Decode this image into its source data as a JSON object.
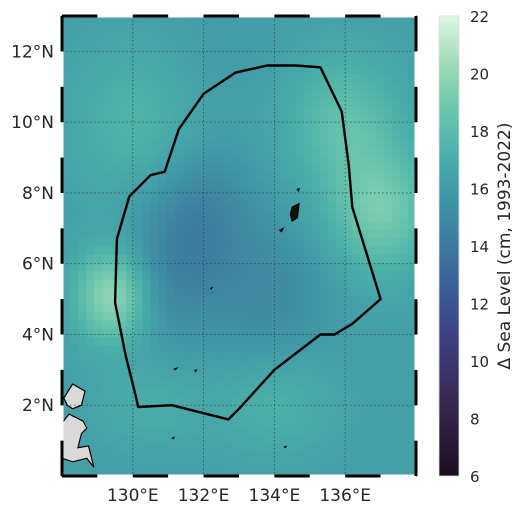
{
  "map": {
    "lon_range": [
      128,
      138
    ],
    "lat_range": [
      0,
      13
    ],
    "x_ticks": [
      {
        "value": 130,
        "label": "130°E"
      },
      {
        "value": 132,
        "label": "132°E"
      },
      {
        "value": 134,
        "label": "134°E"
      },
      {
        "value": 136,
        "label": "136°E"
      }
    ],
    "y_ticks": [
      {
        "value": 2,
        "label": "2°N"
      },
      {
        "value": 4,
        "label": "4°N"
      },
      {
        "value": 6,
        "label": "6°N"
      },
      {
        "value": 8,
        "label": "8°N"
      },
      {
        "value": 10,
        "label": "10°N"
      },
      {
        "value": 12,
        "label": "12°N"
      }
    ],
    "gridlines": "dotted",
    "land_color": "#d9d9d9",
    "boundary_color": "#000000"
  },
  "colorbar": {
    "label": "Δ Sea Level (cm, 1993-2022)",
    "min": 6,
    "max": 22,
    "ticks": [
      {
        "value": 6,
        "label": "6"
      },
      {
        "value": 8,
        "label": "8"
      },
      {
        "value": 10,
        "label": "10"
      },
      {
        "value": 12,
        "label": "12"
      },
      {
        "value": 14,
        "label": "14"
      },
      {
        "value": 16,
        "label": "16"
      },
      {
        "value": 18,
        "label": "18"
      },
      {
        "value": 20,
        "label": "20"
      },
      {
        "value": 22,
        "label": "22"
      }
    ],
    "colormap": [
      "#1c0f1d",
      "#2d1e3e",
      "#3b2f5e",
      "#3e3f83",
      "#3b5b96",
      "#3c7a9f",
      "#3f95a6",
      "#4cb0a9",
      "#6dc7ad",
      "#a1dbb8",
      "#def5e5"
    ]
  },
  "chart_data": {
    "type": "heatmap",
    "description_units": "Δ Sea Level (cm, 1993-2022)",
    "extent": {
      "lon": [
        128,
        138
      ],
      "lat": [
        0,
        13
      ]
    },
    "value_range": [
      6,
      22
    ],
    "field_features": [
      {
        "lon": 129.4,
        "lat": 5.1,
        "value": 20.0,
        "spread_lon": 0.7,
        "spread_lat": 0.9
      },
      {
        "lon": 131.2,
        "lat": 5.8,
        "value": 14.8,
        "spread_lon": 1.0,
        "spread_lat": 1.3
      },
      {
        "lon": 132.0,
        "lat": 7.5,
        "value": 14.8,
        "spread_lon": 1.0,
        "spread_lat": 1.2
      },
      {
        "lon": 133.8,
        "lat": 5.2,
        "value": 15.0,
        "spread_lon": 1.2,
        "spread_lat": 1.3
      },
      {
        "lon": 137.0,
        "lat": 7.5,
        "value": 19.0,
        "spread_lon": 1.0,
        "spread_lat": 1.2
      },
      {
        "lon": 136.0,
        "lat": 10.0,
        "value": 18.2,
        "spread_lon": 1.1,
        "spread_lat": 1.3
      },
      {
        "lon": 134.0,
        "lat": 2.0,
        "value": 17.2,
        "spread_lon": 1.2,
        "spread_lat": 1.0
      },
      {
        "lon": 130.5,
        "lat": 2.0,
        "value": 17.0,
        "spread_lon": 1.1,
        "spread_lat": 0.8
      },
      {
        "lon": 130.0,
        "lat": 10.0,
        "value": 17.4,
        "spread_lon": 1.2,
        "spread_lat": 1.5
      },
      {
        "lon": 132.5,
        "lat": 12.0,
        "value": 16.0,
        "spread_lon": 1.2,
        "spread_lat": 1.0
      }
    ],
    "background_value": 16.2,
    "boundary_polygon": [
      [
        134.6,
        11.6
      ],
      [
        135.3,
        11.55
      ],
      [
        135.9,
        10.3
      ],
      [
        136.1,
        8.8
      ],
      [
        136.2,
        7.6
      ],
      [
        137.0,
        5.0
      ],
      [
        136.2,
        4.3
      ],
      [
        135.7,
        4.0
      ],
      [
        135.3,
        4.0
      ],
      [
        134.0,
        3.0
      ],
      [
        133.0,
        1.9
      ],
      [
        132.7,
        1.6
      ],
      [
        131.1,
        2.0
      ],
      [
        130.15,
        1.95
      ],
      [
        130.1,
        2.2
      ],
      [
        129.8,
        3.4
      ],
      [
        129.5,
        4.9
      ],
      [
        129.55,
        6.7
      ],
      [
        129.9,
        7.9
      ],
      [
        130.5,
        8.5
      ],
      [
        130.9,
        8.6
      ],
      [
        131.3,
        9.8
      ],
      [
        132.0,
        10.8
      ],
      [
        132.9,
        11.4
      ],
      [
        133.8,
        11.6
      ],
      [
        134.6,
        11.6
      ]
    ],
    "islands": [
      {
        "name": "",
        "points": [
          [
            134.5,
            7.6
          ],
          [
            134.7,
            7.7
          ],
          [
            134.65,
            7.3
          ],
          [
            134.5,
            7.2
          ],
          [
            134.45,
            7.4
          ]
        ]
      },
      {
        "name": "",
        "points": [
          [
            134.64,
            8.1
          ],
          [
            134.7,
            8.12
          ],
          [
            134.68,
            8.05
          ]
        ]
      },
      {
        "name": "",
        "points": [
          [
            134.15,
            6.95
          ],
          [
            134.25,
            7.0
          ],
          [
            134.2,
            6.9
          ]
        ]
      },
      {
        "name": "",
        "points": [
          [
            131.17,
            3.03
          ],
          [
            131.25,
            3.05
          ],
          [
            131.2,
            3.0
          ]
        ]
      },
      {
        "name": "",
        "points": [
          [
            131.75,
            2.98
          ],
          [
            131.8,
            3.0
          ],
          [
            131.78,
            2.95
          ]
        ]
      },
      {
        "name": "",
        "points": [
          [
            131.12,
            1.07
          ],
          [
            131.16,
            1.09
          ],
          [
            131.14,
            1.05
          ]
        ]
      },
      {
        "name": "",
        "points": [
          [
            134.28,
            0.82
          ],
          [
            134.33,
            0.84
          ],
          [
            134.31,
            0.8
          ]
        ]
      },
      {
        "name": "",
        "points": [
          [
            132.2,
            5.3
          ],
          [
            132.24,
            5.32
          ],
          [
            132.22,
            5.28
          ]
        ]
      }
    ],
    "land": [
      {
        "name": "",
        "points": [
          [
            128.0,
            0.5
          ],
          [
            128.3,
            0.4
          ],
          [
            128.7,
            0.5
          ],
          [
            128.9,
            0.25
          ],
          [
            128.75,
            0.85
          ],
          [
            128.45,
            0.8
          ],
          [
            128.55,
            1.2
          ],
          [
            128.7,
            1.35
          ],
          [
            128.6,
            1.55
          ],
          [
            128.2,
            1.75
          ],
          [
            128.0,
            1.5
          ]
        ]
      },
      {
        "name": "",
        "points": [
          [
            128.05,
            2.2
          ],
          [
            128.3,
            2.6
          ],
          [
            128.65,
            2.4
          ],
          [
            128.55,
            2.0
          ],
          [
            128.3,
            1.9
          ],
          [
            128.15,
            2.0
          ]
        ]
      }
    ]
  }
}
